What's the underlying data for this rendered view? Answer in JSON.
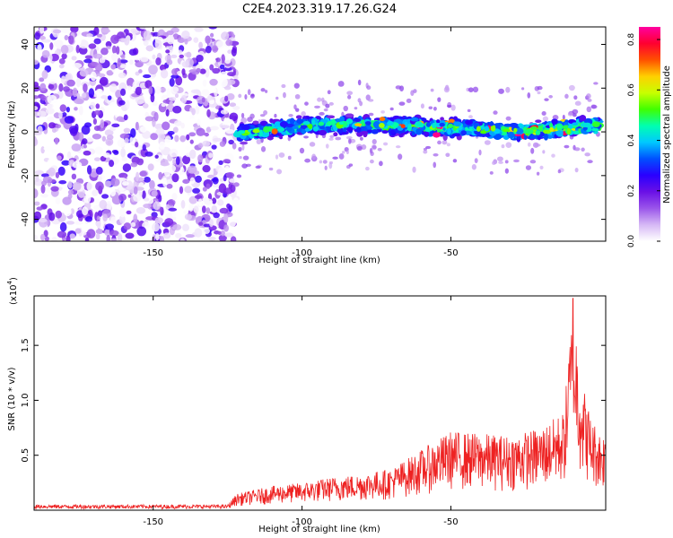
{
  "title": "C2E4.2023.319.17.26.G24",
  "chart_data": [
    {
      "type": "heatmap",
      "xlabel": "Height of straight line (km)",
      "ylabel": "Frequency (Hz)",
      "xlim": [
        -190,
        2
      ],
      "ylim": [
        -50,
        48
      ],
      "xticks": [
        -150,
        -100,
        -50
      ],
      "yticks": [
        -40,
        -20,
        0,
        20,
        40
      ],
      "colorbar": {
        "label": "Normalized spectral amplitude",
        "range": [
          0.0,
          0.85
        ],
        "ticks": [
          0.0,
          0.2,
          0.4,
          0.6,
          0.8
        ],
        "tick_labels": [
          "0.0",
          "0.2",
          "0.4",
          "0.6",
          "0.8"
        ],
        "colormap": [
          "#ffffff",
          "#d6b8f5",
          "#9a55ea",
          "#6a10e6",
          "#2a00ff",
          "#0050ff",
          "#00c8ff",
          "#00ffb0",
          "#40ff00",
          "#c8ff00",
          "#ffd000",
          "#ff5000",
          "#ff0030",
          "#ff00a0"
        ]
      },
      "regions": [
        {
          "x": [
            -190,
            -122
          ],
          "description_freq_range": [
            -50,
            48
          ],
          "level": 0.15
        },
        {
          "x": [
            -122,
            0
          ],
          "center_freq": [
            -1,
            3,
            3,
            2,
            0,
            3
          ],
          "band_halfwidth": 5,
          "peak_level": 0.85
        }
      ]
    },
    {
      "type": "line",
      "xlabel": "Height of straight line (km)",
      "ylabel": "SNR (10 * v/v)",
      "scale_label": "(x10",
      "scale_exponent": "4",
      "scale_suffix": ")",
      "xlim": [
        -190,
        2
      ],
      "ylim": [
        0,
        1.95
      ],
      "xticks": [
        -150,
        -100,
        -50
      ],
      "yticks": [
        0.5,
        1.0,
        1.5
      ],
      "ytick_labels": [
        "0.5",
        "1.0",
        "1.5"
      ],
      "color": "#ee2222",
      "envelope": {
        "x": [
          -190,
          -125,
          -122,
          -110,
          -100,
          -90,
          -80,
          -70,
          -60,
          -50,
          -40,
          -30,
          -20,
          -12,
          -9,
          -6,
          -3,
          0,
          2
        ],
        "y_max": [
          0.05,
          0.05,
          0.15,
          0.22,
          0.25,
          0.3,
          0.33,
          0.38,
          0.55,
          0.72,
          0.7,
          0.68,
          0.75,
          0.9,
          1.95,
          1.2,
          0.85,
          0.72,
          0.7
        ]
      }
    }
  ]
}
